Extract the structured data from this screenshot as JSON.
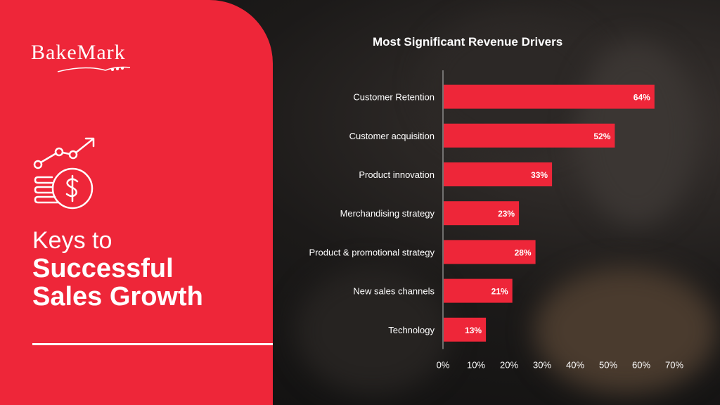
{
  "brand": {
    "logo_text": "BakeMark"
  },
  "headline": {
    "line1": "Keys to",
    "line2": "Successful",
    "line3": "Sales Growth"
  },
  "colors": {
    "accent": "#ee2639",
    "text": "#ffffff"
  },
  "icons": [
    "growth-arrow-icon",
    "coin-stack-icon"
  ],
  "chart_data": {
    "type": "bar",
    "orientation": "horizontal",
    "title": "Most Significant Revenue Drivers",
    "categories": [
      "Customer Retention",
      "Customer acquisition",
      "Product innovation",
      "Merchandising strategy",
      "Product & promotional strategy",
      "New sales channels",
      "Technology"
    ],
    "values": [
      64,
      52,
      33,
      23,
      28,
      21,
      13
    ],
    "value_labels": [
      "64%",
      "52%",
      "33%",
      "23%",
      "28%",
      "21%",
      "13%"
    ],
    "xlim": [
      0,
      70
    ],
    "xticks": [
      "0%",
      "10%",
      "20%",
      "30%",
      "40%",
      "50%",
      "60%",
      "70%"
    ],
    "grid": false,
    "bar_color": "#ee2639"
  }
}
